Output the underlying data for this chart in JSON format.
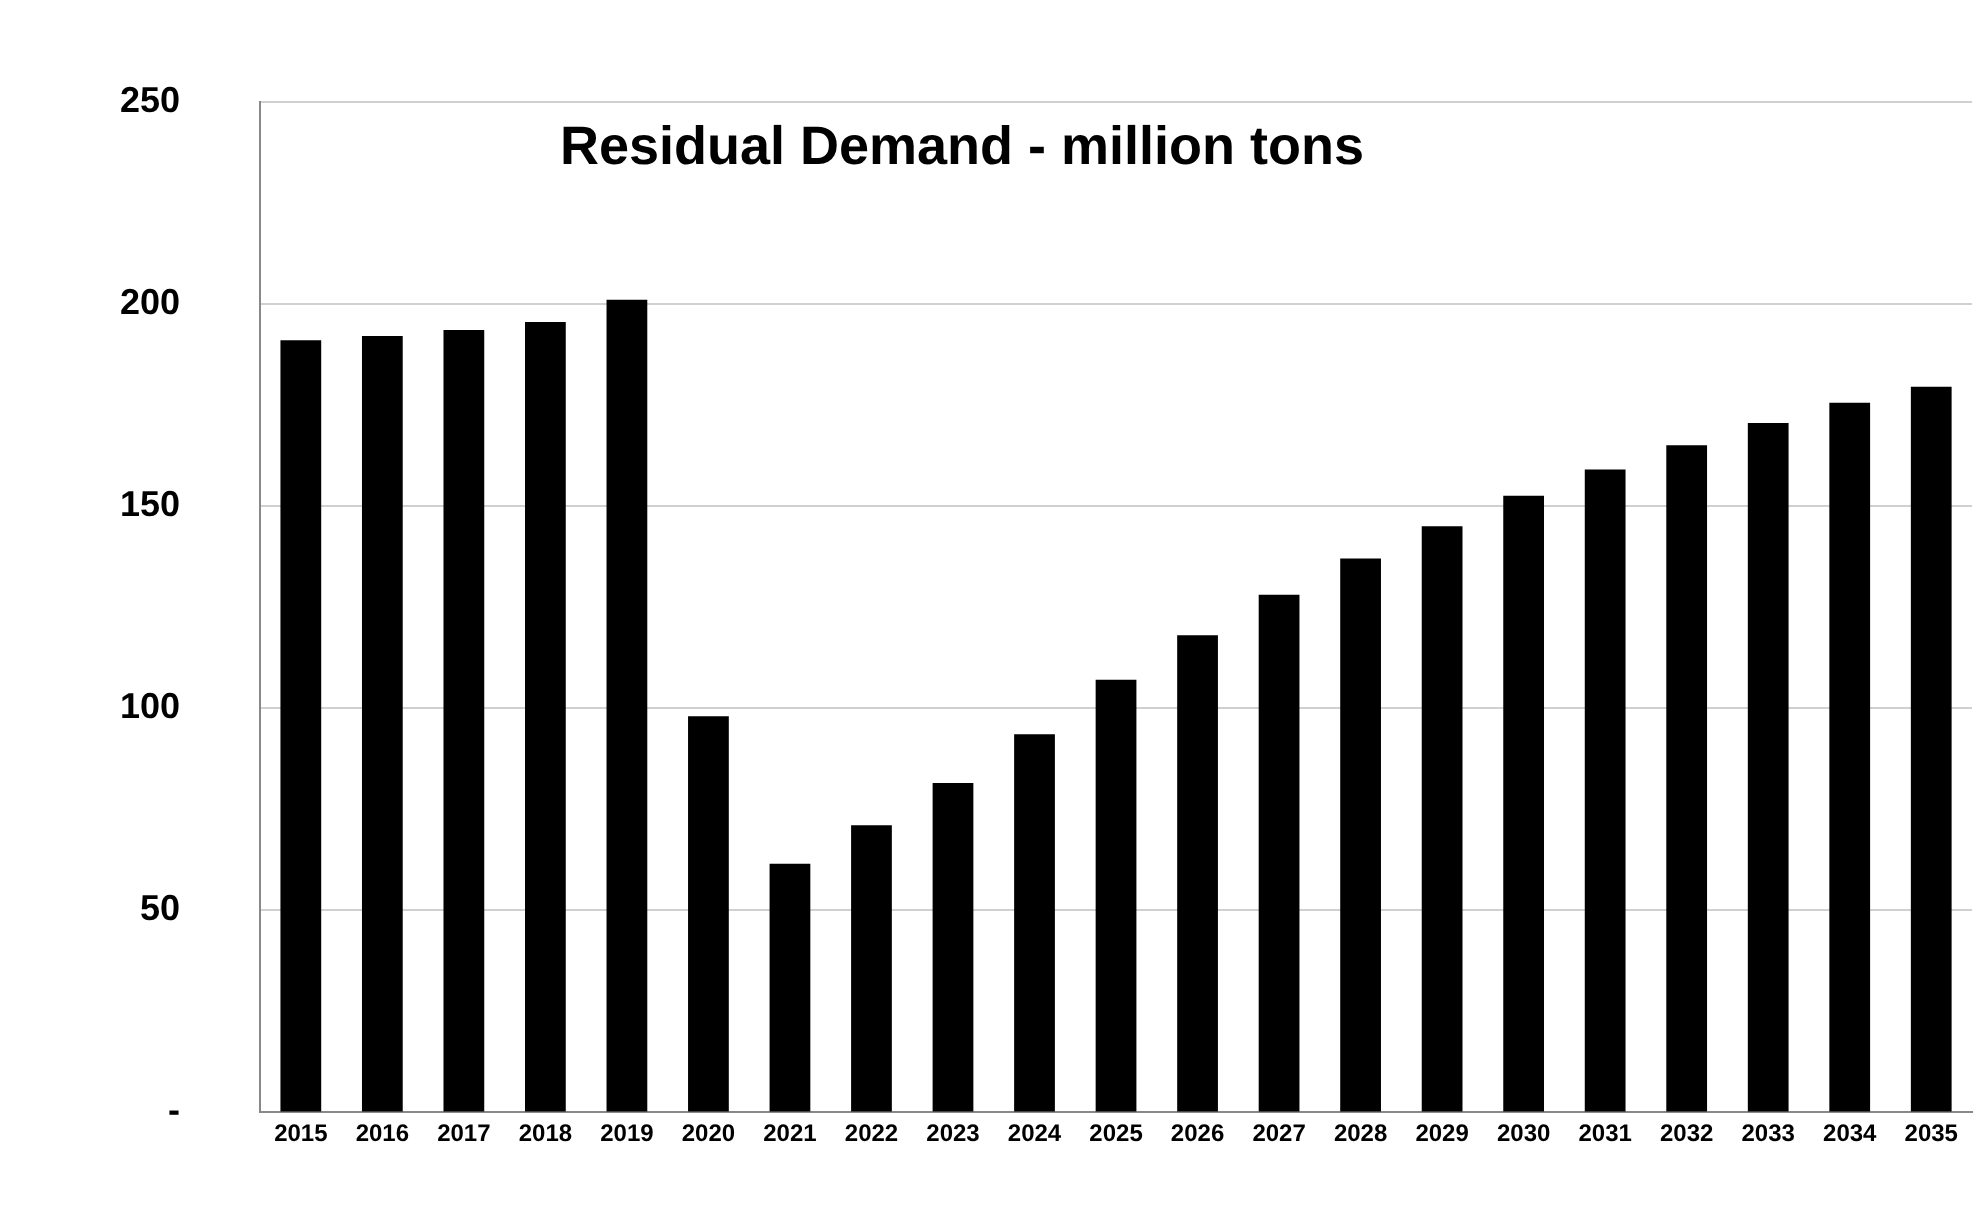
{
  "chart_data": {
    "type": "bar",
    "title": "Residual Demand - million tons",
    "categories": [
      "2015",
      "2016",
      "2017",
      "2018",
      "2019",
      "2020",
      "2021",
      "2022",
      "2023",
      "2024",
      "2025",
      "2026",
      "2027",
      "2028",
      "2029",
      "2030",
      "2031",
      "2032",
      "2033",
      "2034",
      "2035"
    ],
    "values": [
      191,
      192,
      193.5,
      195.5,
      201,
      98,
      61.5,
      71,
      81.5,
      93.5,
      107,
      118,
      128,
      137,
      145,
      152.5,
      159,
      165,
      170.5,
      175.5,
      179.5
    ],
    "color": "#000000",
    "ylim": [
      0,
      250
    ],
    "yticks": [
      {
        "value": 0,
        "label": "-"
      },
      50,
      100,
      150,
      200,
      250
    ],
    "grid": "y",
    "legend": false
  }
}
